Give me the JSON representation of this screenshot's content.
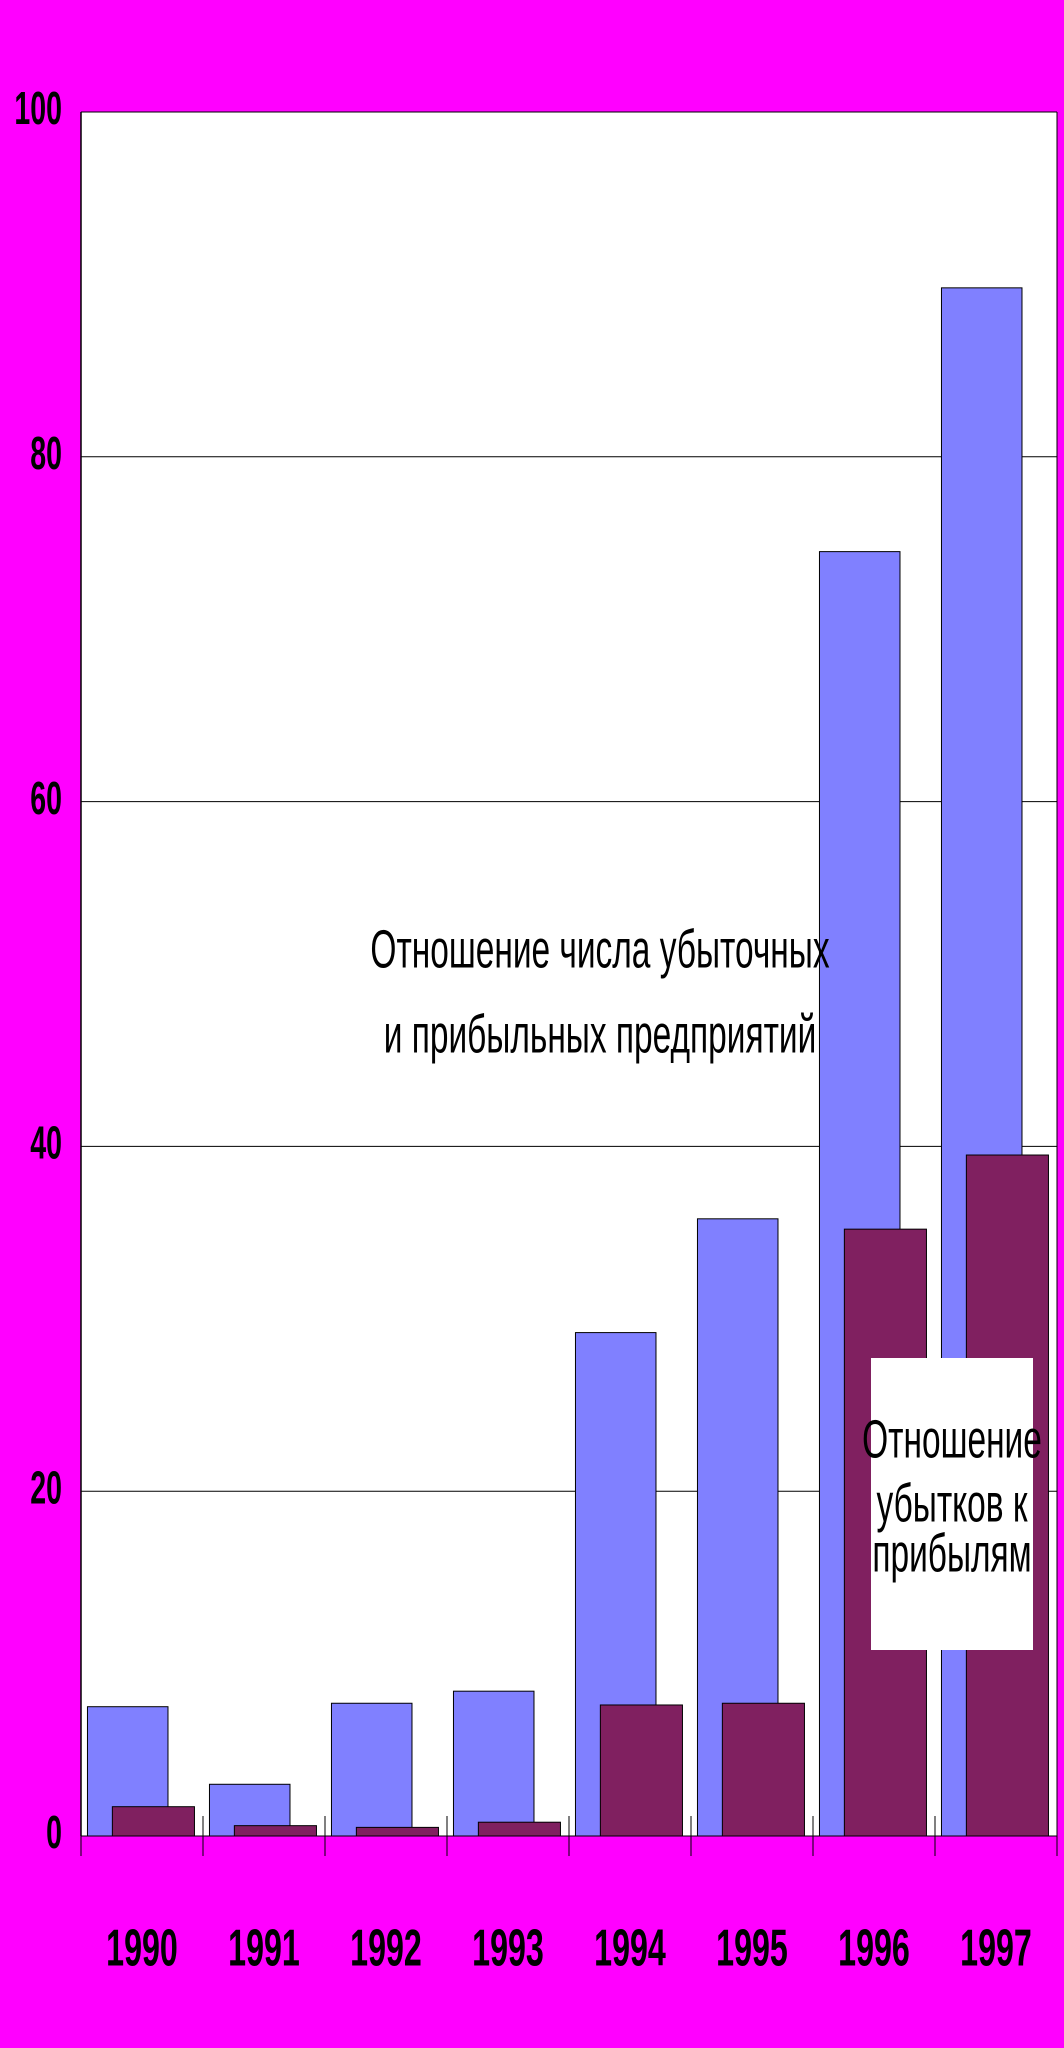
{
  "chart_data": {
    "type": "bar",
    "categories": [
      "1990",
      "1991",
      "1992",
      "1993",
      "1994",
      "1995",
      "1996",
      "1997"
    ],
    "series": [
      {
        "color": "#8080ff",
        "values": [
          7.5,
          3.0,
          7.7,
          8.4,
          29.2,
          35.8,
          74.5,
          89.8
        ]
      },
      {
        "color": "#802060",
        "values": [
          1.7,
          0.6,
          0.5,
          0.8,
          7.6,
          7.7,
          35.2,
          39.5
        ]
      }
    ],
    "annotations": [
      [
        "Отношение числа убыточных",
        "и прибыльных предприятий"
      ],
      [
        "Отношение",
        "убытков к",
        "прибылям"
      ]
    ],
    "ylim": [
      0,
      100
    ],
    "yticks": [
      0,
      20,
      40,
      60,
      80,
      100
    ],
    "grid": true,
    "background": "#ff00ff"
  }
}
